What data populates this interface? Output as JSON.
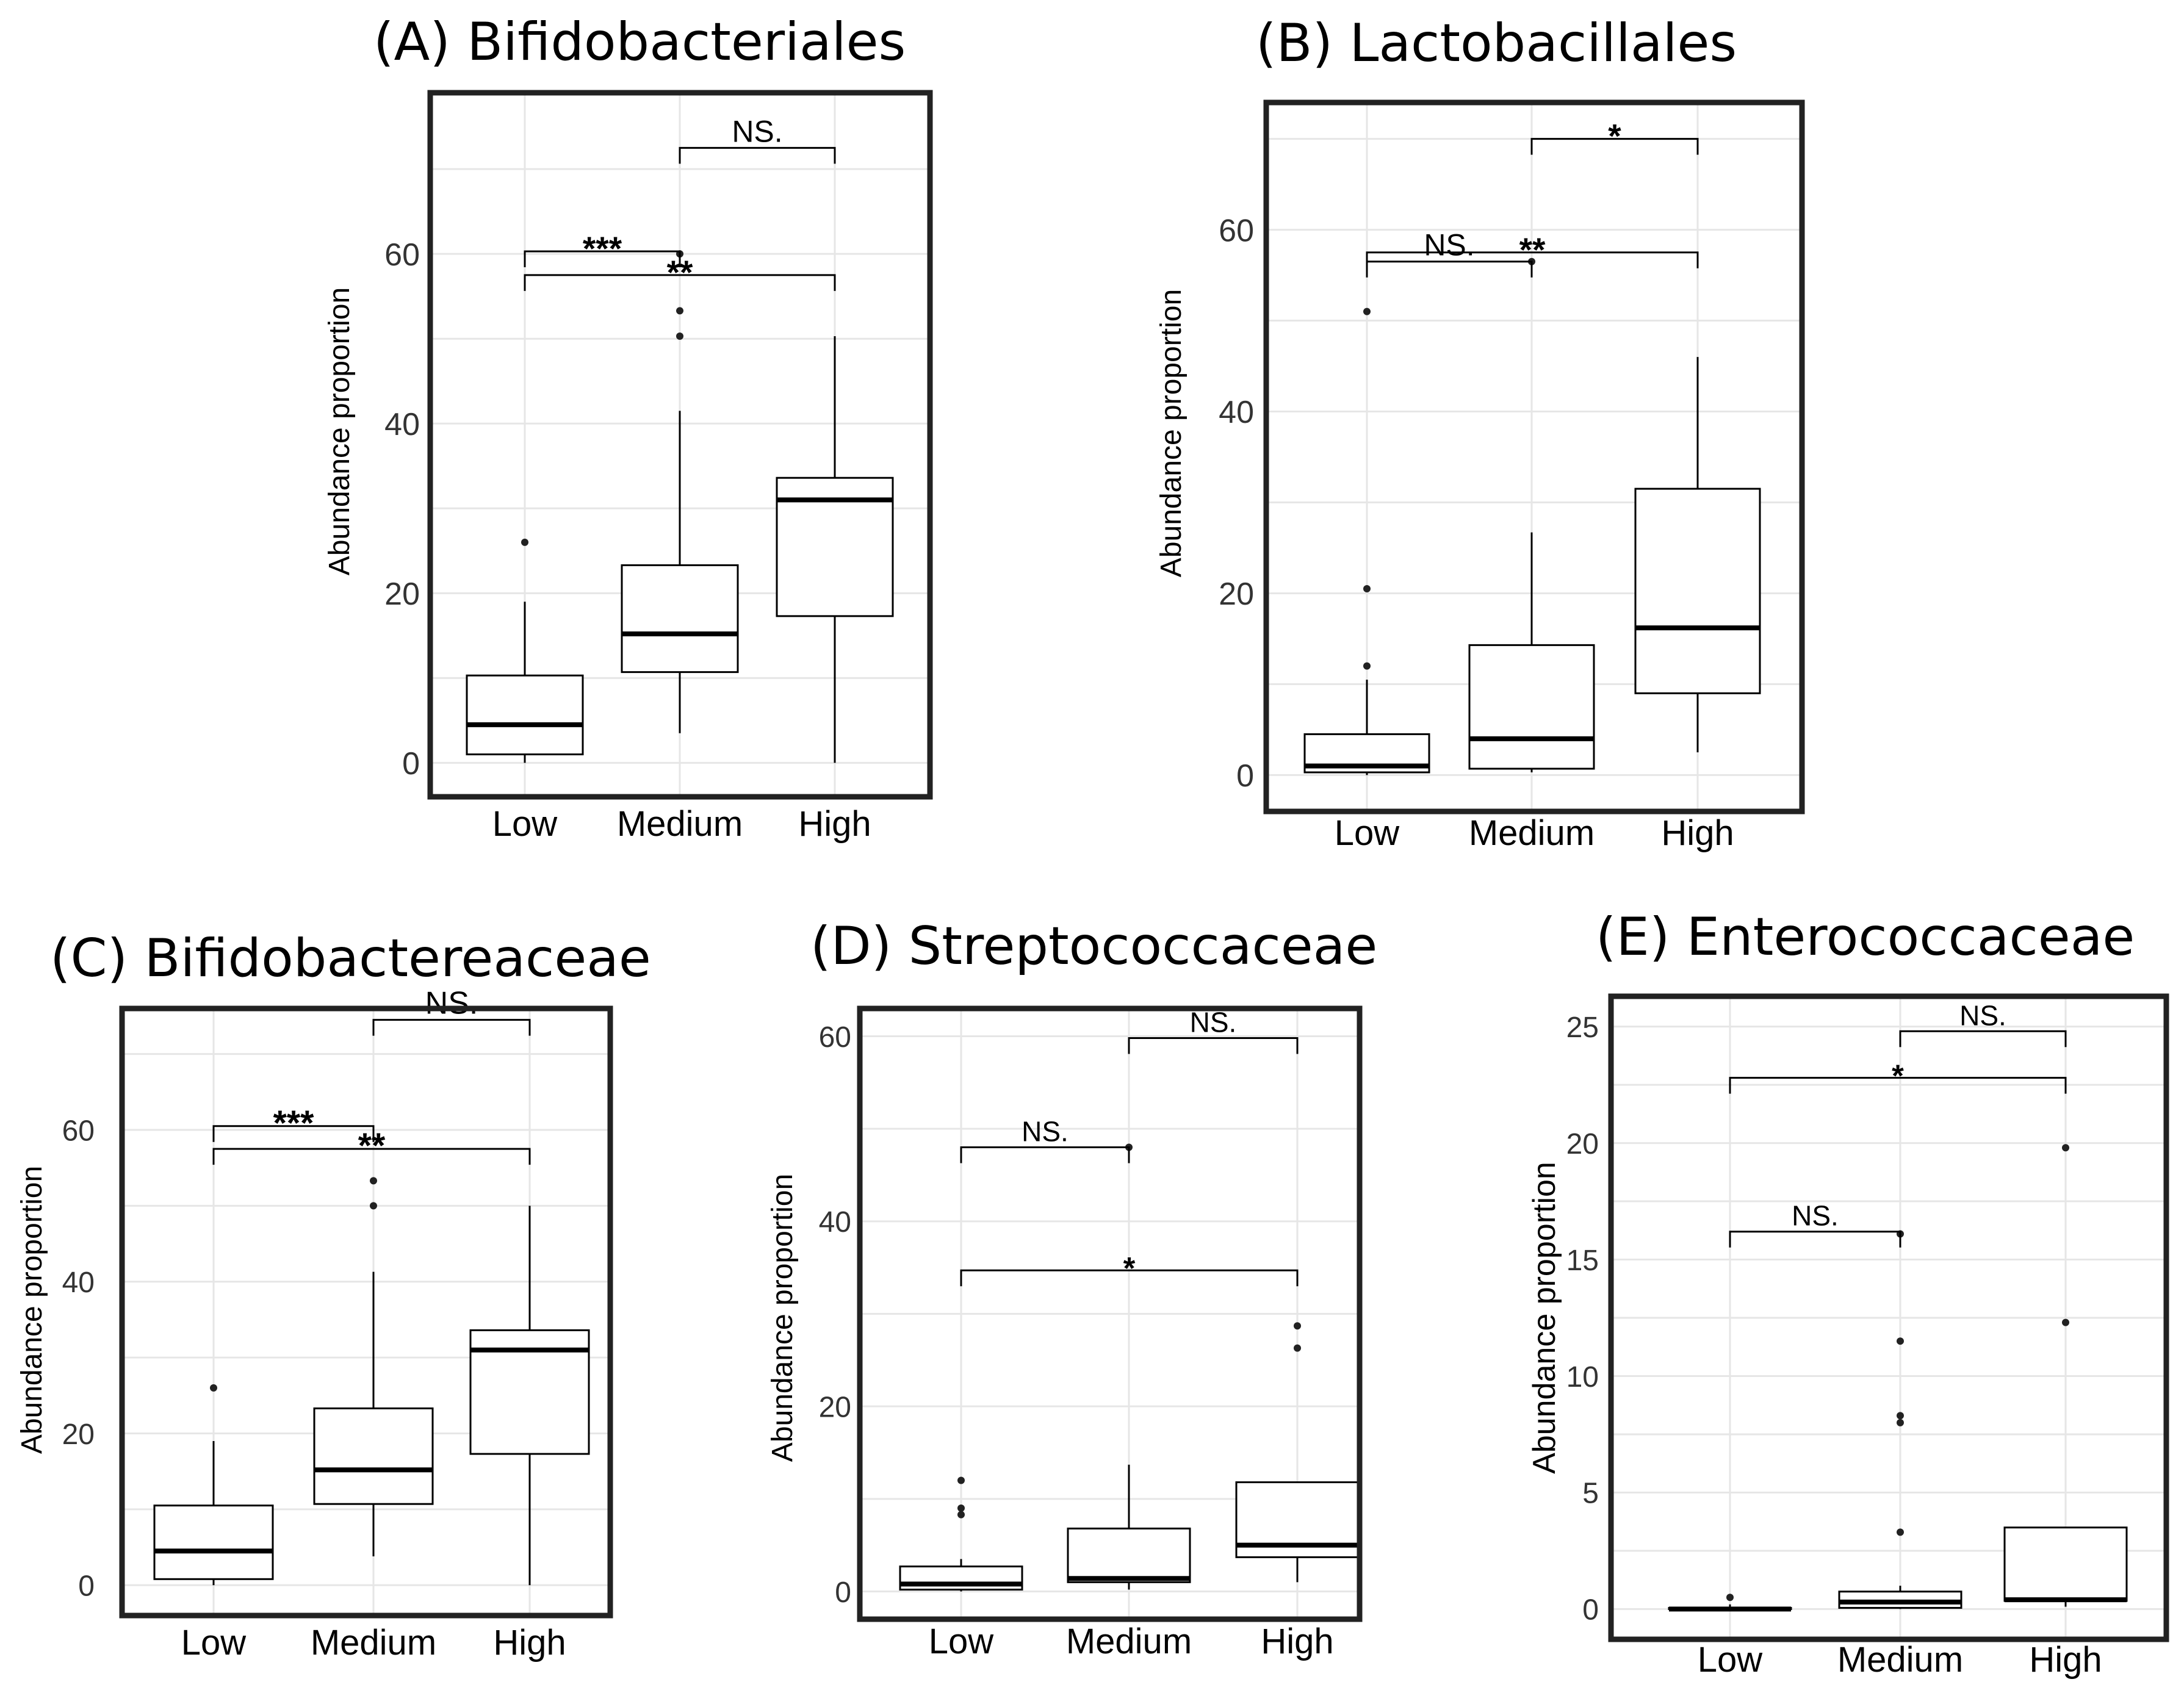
{
  "figure": {
    "background": "#ffffff",
    "frame_color": "#222222",
    "grid_color": "#e6e6e6",
    "box_color": "#000000"
  },
  "chart_data": [
    {
      "id": "A",
      "type": "boxplot",
      "title": "(A) Bifidobacteriales",
      "ylabel": "Abundance proportion",
      "xlabel": "",
      "categories": [
        "Low",
        "Medium",
        "High"
      ],
      "ylim": [
        -4,
        79
      ],
      "yticks": [
        0,
        20,
        40,
        60
      ],
      "ytick_labels": [
        "0",
        "20",
        "40",
        "60"
      ],
      "grid": true,
      "boxes": [
        {
          "category": "Low",
          "whisker_low": 0,
          "q1": 1,
          "median": 4.5,
          "q3": 10.3,
          "whisker_high": 19,
          "outliers": [
            26
          ]
        },
        {
          "category": "Medium",
          "whisker_low": 3.5,
          "q1": 10.7,
          "median": 15.2,
          "q3": 23.3,
          "whisker_high": 41.5,
          "outliers": [
            50.3,
            53.3,
            60
          ]
        },
        {
          "category": "High",
          "whisker_low": 0,
          "q1": 17.3,
          "median": 31,
          "q3": 33.6,
          "whisker_high": 50.3,
          "outliers": []
        }
      ],
      "significance": [
        {
          "from": "Medium",
          "to": "High",
          "y": 72.5,
          "label": "NS."
        },
        {
          "from": "Low",
          "to": "Medium",
          "y": 60.3,
          "label": "***"
        },
        {
          "from": "Low",
          "to": "High",
          "y": 57.5,
          "label": "**"
        }
      ]
    },
    {
      "id": "B",
      "type": "boxplot",
      "title": "(B) Lactobacillales",
      "ylabel": "Abundance proportion",
      "xlabel": "",
      "categories": [
        "Low",
        "Medium",
        "High"
      ],
      "ylim": [
        -4,
        74
      ],
      "yticks": [
        0,
        20,
        40,
        60
      ],
      "ytick_labels": [
        "0",
        "20",
        "40",
        "60"
      ],
      "grid": true,
      "boxes": [
        {
          "category": "Low",
          "whisker_low": 0,
          "q1": 0.3,
          "median": 1,
          "q3": 4.5,
          "whisker_high": 10.5,
          "outliers": [
            12,
            20.5,
            51
          ]
        },
        {
          "category": "Medium",
          "whisker_low": 0.3,
          "q1": 0.7,
          "median": 4,
          "q3": 14.3,
          "whisker_high": 26.7,
          "outliers": [
            56.5
          ]
        },
        {
          "category": "High",
          "whisker_low": 2.5,
          "q1": 9,
          "median": 16.2,
          "q3": 31.5,
          "whisker_high": 46,
          "outliers": []
        }
      ],
      "significance": [
        {
          "from": "Medium",
          "to": "High",
          "y": 70,
          "label": "*"
        },
        {
          "from": "Low",
          "to": "High",
          "y": 57.5,
          "label": "**"
        },
        {
          "from": "Low",
          "to": "Medium",
          "y": 56.5,
          "label": "NS."
        }
      ]
    },
    {
      "id": "C",
      "type": "boxplot",
      "title": "(C) Bifidobactereaceae",
      "ylabel": "Abundance proportion",
      "xlabel": "",
      "categories": [
        "Low",
        "Medium",
        "High"
      ],
      "ylim": [
        -4,
        76
      ],
      "yticks": [
        0,
        20,
        40,
        60
      ],
      "ytick_labels": [
        "0",
        "20",
        "40",
        "60"
      ],
      "grid": true,
      "boxes": [
        {
          "category": "Low",
          "whisker_low": 0,
          "q1": 0.8,
          "median": 4.5,
          "q3": 10.5,
          "whisker_high": 19,
          "outliers": [
            26
          ]
        },
        {
          "category": "Medium",
          "whisker_low": 3.8,
          "q1": 10.7,
          "median": 15.2,
          "q3": 23.3,
          "whisker_high": 41.3,
          "outliers": [
            50,
            53.3
          ]
        },
        {
          "category": "High",
          "whisker_low": 0,
          "q1": 17.3,
          "median": 31,
          "q3": 33.6,
          "whisker_high": 50,
          "outliers": []
        }
      ],
      "significance": [
        {
          "from": "Medium",
          "to": "High",
          "y": 74.5,
          "label": "NS."
        },
        {
          "from": "Low",
          "to": "Medium",
          "y": 60.5,
          "label": "***"
        },
        {
          "from": "Low",
          "to": "High",
          "y": 57.5,
          "label": "**"
        }
      ]
    },
    {
      "id": "D",
      "type": "boxplot",
      "title": "(D) Streptococcaceae",
      "ylabel": "Abundance proportion",
      "xlabel": "",
      "categories": [
        "Low",
        "Medium",
        "High"
      ],
      "ylim": [
        -3,
        63
      ],
      "yticks": [
        0,
        20,
        40,
        60
      ],
      "ytick_labels": [
        "0",
        "20",
        "40",
        "60"
      ],
      "grid": true,
      "boxes": [
        {
          "category": "Low",
          "whisker_low": 0,
          "q1": 0.2,
          "median": 0.8,
          "q3": 2.7,
          "whisker_high": 3.5,
          "outliers": [
            8.3,
            9,
            12
          ]
        },
        {
          "category": "Medium",
          "whisker_low": 0.2,
          "q1": 1,
          "median": 1.4,
          "q3": 6.8,
          "whisker_high": 13.7,
          "outliers": [
            48
          ]
        },
        {
          "category": "High",
          "whisker_low": 1,
          "q1": 3.7,
          "median": 5,
          "q3": 11.8,
          "whisker_high": 11.8,
          "outliers": [
            26.3,
            28.7
          ]
        }
      ],
      "significance": [
        {
          "from": "Medium",
          "to": "High",
          "y": 59.8,
          "label": "NS."
        },
        {
          "from": "Low",
          "to": "Medium",
          "y": 48,
          "label": "NS."
        },
        {
          "from": "Low",
          "to": "High",
          "y": 34.7,
          "label": "*"
        }
      ]
    },
    {
      "id": "E",
      "type": "boxplot",
      "title": "(E) Enterococcaceae",
      "ylabel": "Abundance proportion",
      "xlabel": "",
      "categories": [
        "Low",
        "Medium",
        "High"
      ],
      "ylim": [
        -1.3,
        26.3
      ],
      "yticks": [
        0,
        5,
        10,
        15,
        20,
        25
      ],
      "ytick_labels": [
        "0",
        "5",
        "10",
        "15",
        "20",
        "25"
      ],
      "grid": true,
      "boxes": [
        {
          "category": "Low",
          "whisker_low": 0,
          "q1": 0,
          "median": 0,
          "q3": 0.05,
          "whisker_high": 0.2,
          "outliers": [
            0.5
          ]
        },
        {
          "category": "Medium",
          "whisker_low": 0,
          "q1": 0.05,
          "median": 0.3,
          "q3": 0.75,
          "whisker_high": 1,
          "outliers": [
            3.3,
            8,
            8.3,
            11.5,
            16.1
          ]
        },
        {
          "category": "High",
          "whisker_low": 0.1,
          "q1": 0.35,
          "median": 0.4,
          "q3": 3.5,
          "whisker_high": 3.5,
          "outliers": [
            12.3,
            19.8
          ]
        }
      ],
      "significance": [
        {
          "from": "Medium",
          "to": "High",
          "y": 24.8,
          "label": "NS."
        },
        {
          "from": "Low",
          "to": "High",
          "y": 22.8,
          "label": "*"
        },
        {
          "from": "Low",
          "to": "Medium",
          "y": 16.2,
          "label": "NS."
        }
      ]
    }
  ]
}
